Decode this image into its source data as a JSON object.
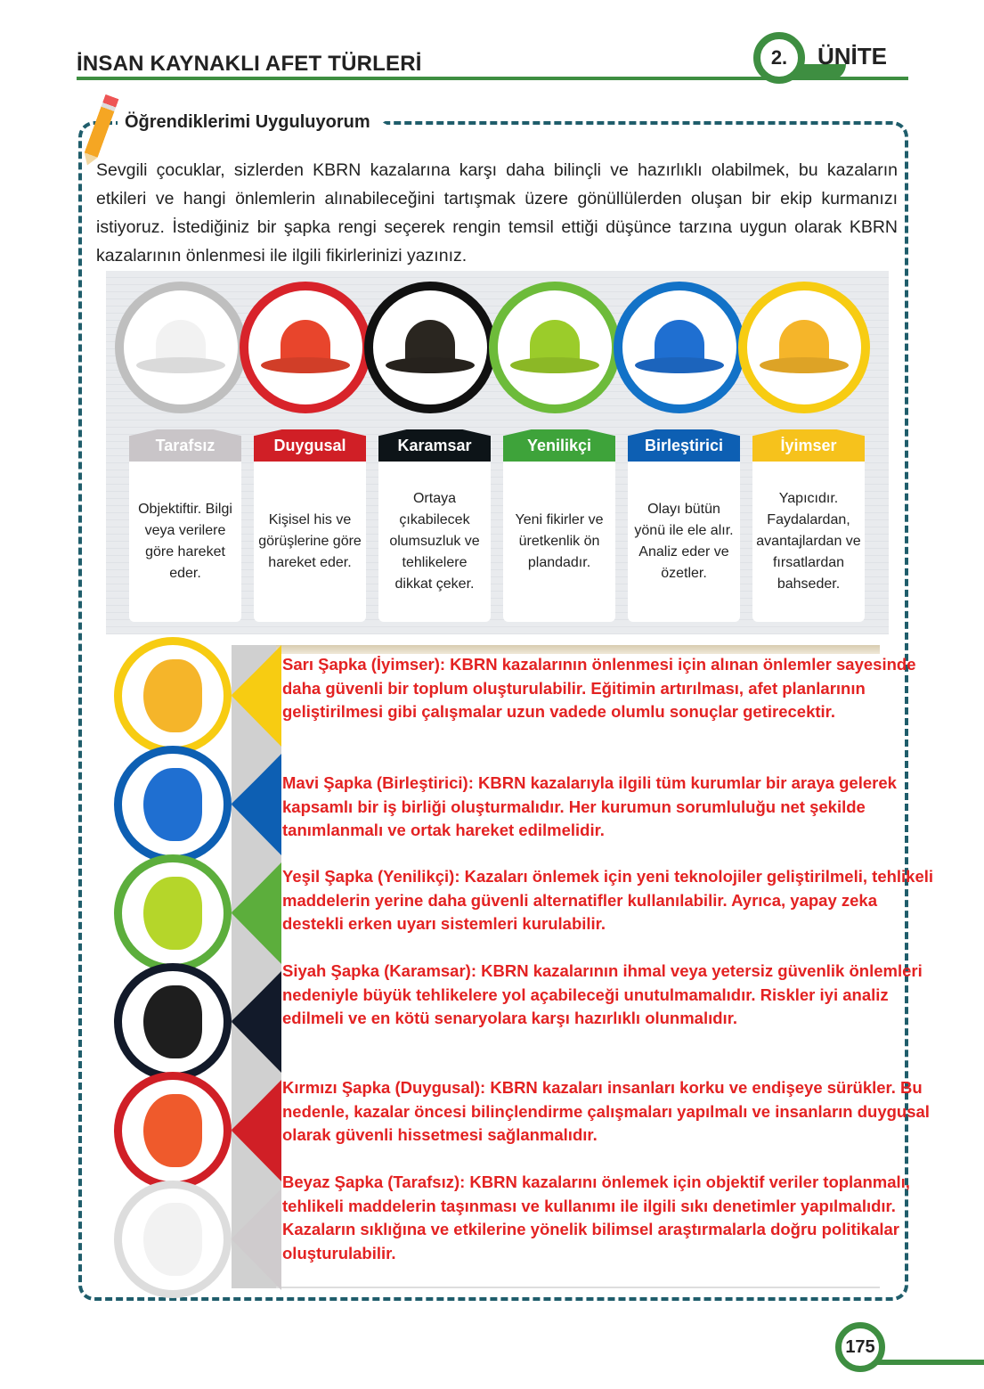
{
  "header": {
    "title": "İNSAN KAYNAKLI AFET TÜRLERİ",
    "unit_number": "2.",
    "unit_label": "ÜNİTE",
    "accent": "#3e8e41"
  },
  "section": {
    "title": "Öğrendiklerimi Uyguluyorum",
    "icon": "pencil-icon",
    "intro": "Sevgili çocuklar, sizlerden KBRN kazalarına karşı daha bilinçli ve hazırlıklı olabilmek, bu kazaların etkileri ve hangi önlemlerin alınabileceğini tartışmak üzere gönüllülerden oluşan bir ekip kurmanızı istiyoruz. İstediğiniz bir şapka rengi seçerek rengin temsil ettiği düşünce tarzına uygun olarak KBRN kazalarının önlenmesi ile ilgili fikirlerinizi yazınız."
  },
  "hats": [
    {
      "label": "Tarafsız",
      "desc": "Objektiftir. Bilgi veya verilere göre hareket eder.",
      "color": "#f2f2f2",
      "label_bg": "#c9c5c8",
      "ring": "#bfbfbf"
    },
    {
      "label": "Duygusal",
      "desc": "Kişisel his ve görüşlerine göre hareket eder.",
      "color": "#e8452c",
      "label_bg": "#d01f26",
      "ring": "#d8232a"
    },
    {
      "label": "Karamsar",
      "desc": "Ortaya çıkabilecek olumsuzluk ve tehlikelere dikkat çeker.",
      "color": "#2a2620",
      "label_bg": "#0d1418",
      "ring": "#111"
    },
    {
      "label": "Yenilikçi",
      "desc": "Yeni fikirler ve üretkenlik ön plandadır.",
      "color": "#9bcc2a",
      "label_bg": "#3ea33a",
      "ring": "#6dbb3a"
    },
    {
      "label": "Birleştirici",
      "desc": "Olayı bütün yönü ile ele alır. Analiz eder ve özetler.",
      "color": "#1f6fd1",
      "label_bg": "#0d5fb3",
      "ring": "#1272c7"
    },
    {
      "label": "İyimser",
      "desc": "Yapıcıdır. Faydalardan, avantajlardan ve fırsatlardan bahseder.",
      "color": "#f5b52a",
      "label_bg": "#f6c21c",
      "ring": "#f7cc12"
    }
  ],
  "answers": [
    {
      "color": "#f7cc12",
      "hat": "#f5b52a",
      "text": "Sarı Şapka (İyimser): KBRN kazalarının önlenmesi için alınan önlemler sayesinde daha güvenli bir toplum oluşturulabilir. Eğitimin artırılması, afet planlarının geliştirilmesi gibi çalışmalar uzun vadede olumlu sonuçlar getirecektir."
    },
    {
      "color": "#0d5fb3",
      "hat": "#1f6fd1",
      "text": "Mavi Şapka (Birleştirici): KBRN kazalarıyla ilgili tüm kurumlar bir araya gelerek kapsamlı bir iş birliği oluşturmalıdır. Her kurumun sorumluluğu net şekilde tanımlanmalı ve ortak hareket edilmelidir."
    },
    {
      "color": "#5cae3c",
      "hat": "#b5d62a",
      "text": "Yeşil Şapka (Yenilikçi): Kazaları önlemek için yeni teknolojiler geliştirilmeli, tehlikeli maddelerin yerine daha güvenli alternatifler kullanılabilir. Ayrıca, yapay zeka destekli erken uyarı sistemleri kurulabilir."
    },
    {
      "color": "#121a2a",
      "hat": "#1e1e1e",
      "text": "Siyah Şapka (Karamsar): KBRN kazalarının ihmal veya yetersiz güvenlik önlemleri nedeniyle büyük tehlikelere yol açabileceği unutulmamalıdır. Riskler iyi analiz edilmeli ve en kötü senaryolara karşı hazırlıklı olunmalıdır."
    },
    {
      "color": "#d01f26",
      "hat": "#ef5a2c",
      "text": "Kırmızı Şapka (Duygusal): KBRN kazaları insanları korku ve endişeye sürükler. Bu nedenle, kazalar öncesi bilinçlendirme çalışmaları yapılmalı ve insanların duygusal olarak güvenli hissetmesi sağlanmalıdır."
    },
    {
      "color": "#cfcbcd",
      "hat": "#f2f2f2",
      "text": "Beyaz Şapka (Tarafsız): KBRN kazalarını önlemek için objektif veriler toplanmalı, tehlikeli maddelerin taşınması ve kullanımı ile ilgili sıkı denetimler yapılmalıdır. Kazaların sıklığına ve etkilerine yönelik bilimsel araştırmalarla doğru politikalar oluşturulabilir."
    }
  ],
  "footer": {
    "page": "175"
  }
}
